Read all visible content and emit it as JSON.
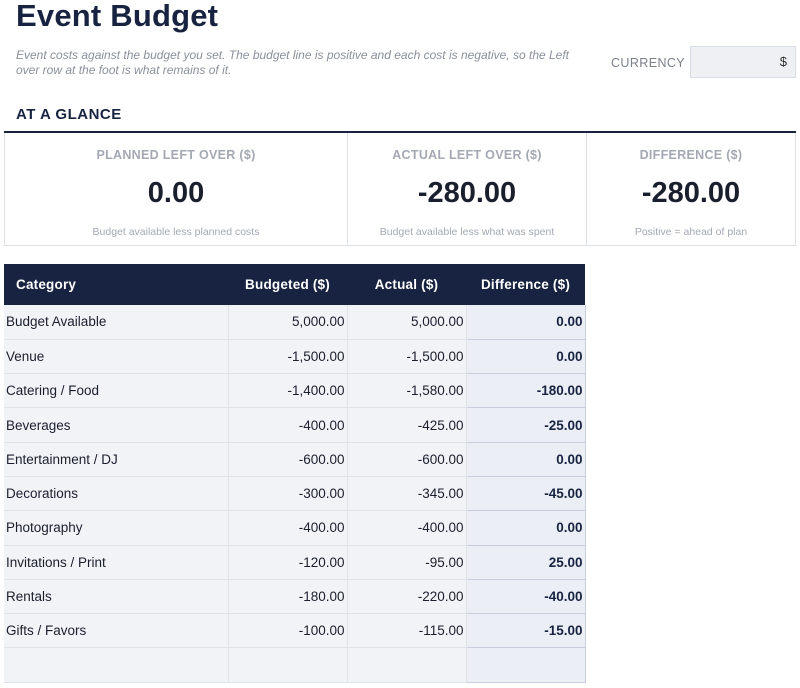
{
  "header": {
    "title": "Event Budget",
    "subtitle": "Event costs against the budget you set. The budget line is positive and each cost is negative, so the Left over row at the foot is what remains of it.",
    "currency_label": "CURRENCY",
    "currency_value": "$"
  },
  "glance": {
    "heading": "AT A GLANCE",
    "cards": [
      {
        "label": "PLANNED LEFT OVER ($)",
        "value": "0.00",
        "note": "Budget available less planned costs"
      },
      {
        "label": "ACTUAL LEFT OVER ($)",
        "value": "-280.00",
        "note": "Budget available less what was spent"
      },
      {
        "label": "DIFFERENCE ($)",
        "value": "-280.00",
        "note": "Positive = ahead of plan"
      }
    ]
  },
  "table": {
    "headers": [
      "Category",
      "Budgeted ($)",
      "Actual ($)",
      "Difference ($)"
    ],
    "rows": [
      {
        "category": "Budget Available",
        "budgeted": "5,000.00",
        "actual": "5,000.00",
        "difference": "0.00"
      },
      {
        "category": "Venue",
        "budgeted": "-1,500.00",
        "actual": "-1,500.00",
        "difference": "0.00"
      },
      {
        "category": "Catering / Food",
        "budgeted": "-1,400.00",
        "actual": "-1,580.00",
        "difference": "-180.00"
      },
      {
        "category": "Beverages",
        "budgeted": "-400.00",
        "actual": "-425.00",
        "difference": "-25.00"
      },
      {
        "category": "Entertainment / DJ",
        "budgeted": "-600.00",
        "actual": "-600.00",
        "difference": "0.00"
      },
      {
        "category": "Decorations",
        "budgeted": "-300.00",
        "actual": "-345.00",
        "difference": "-45.00"
      },
      {
        "category": "Photography",
        "budgeted": "-400.00",
        "actual": "-400.00",
        "difference": "0.00"
      },
      {
        "category": "Invitations / Print",
        "budgeted": "-120.00",
        "actual": "-95.00",
        "difference": "25.00"
      },
      {
        "category": "Rentals",
        "budgeted": "-180.00",
        "actual": "-220.00",
        "difference": "-40.00"
      },
      {
        "category": "Gifts / Favors",
        "budgeted": "-100.00",
        "actual": "-115.00",
        "difference": "-15.00"
      },
      {
        "category": "",
        "budgeted": "",
        "actual": "",
        "difference": ""
      }
    ]
  }
}
